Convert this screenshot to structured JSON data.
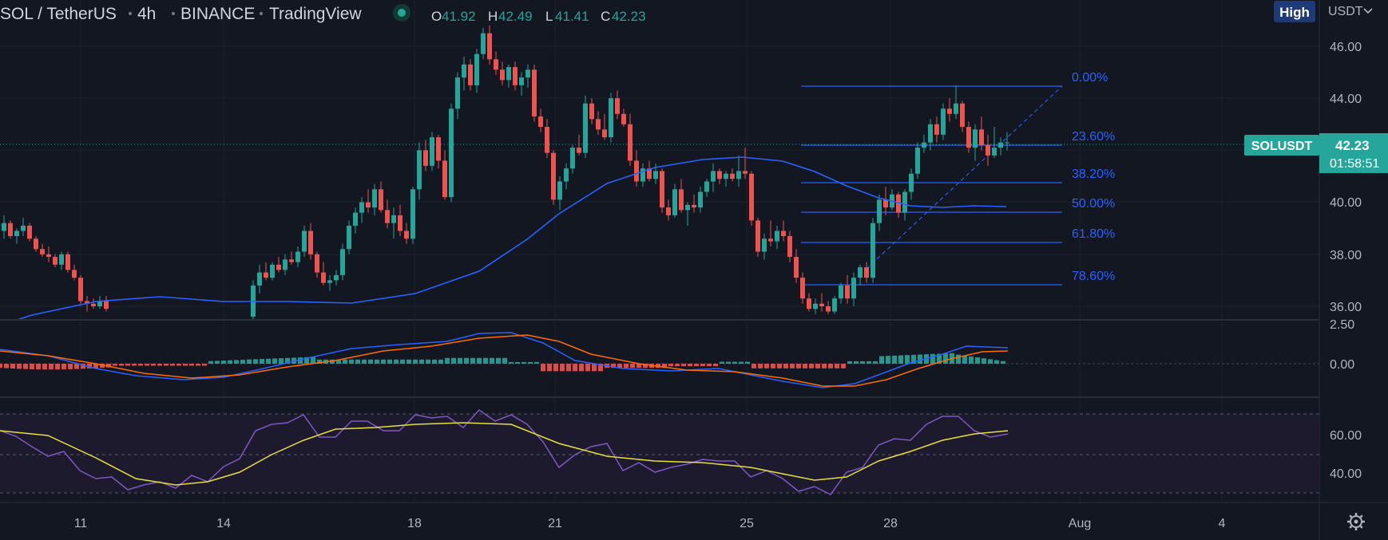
{
  "header": {
    "symbol": "SOL / TetherUS",
    "interval": "4h",
    "exchange": "BINANCE",
    "source": "TradingView",
    "o_label": "O",
    "o_value": "41.92",
    "h_label": "H",
    "h_value": "42.49",
    "l_label": "L",
    "l_value": "41.41",
    "c_label": "C",
    "c_value": "42.23"
  },
  "top_right": {
    "price_mode": "High",
    "currency": "USDT"
  },
  "price_tag": {
    "symbol": "SOLUSDT",
    "price": "42.23",
    "countdown": "01:58:51"
  },
  "colors": {
    "background": "#131722",
    "up": "#26a69a",
    "down": "#ef5350",
    "sma": "#2962ff",
    "fib": "#2962ff",
    "macd": "#2962ff",
    "signal": "#ff6d00",
    "rsi": "#7e57c2",
    "rsi_ma": "#e7df3a",
    "price_tag": "#26a69a"
  },
  "settings_icon": "gear-icon",
  "chart_data": [
    {
      "type": "candlestick",
      "title": "",
      "y_axis_ticks": [
        "46.00",
        "44.00",
        "40.00",
        "38.00",
        "36.00"
      ],
      "ylim": [
        35.5,
        47.4
      ],
      "x_ticks": [
        "11",
        "14",
        "18",
        "21",
        "25",
        "28",
        "Aug",
        "4"
      ],
      "ohlc_approx": [
        {
          "date": "Jul 19",
          "o": 41.3,
          "h": 46.0,
          "l": 41.0,
          "c": 45.8
        },
        {
          "date": "Jul 20",
          "o": 45.8,
          "h": 46.3,
          "l": 44.3,
          "c": 44.9
        },
        {
          "date": "Jul 21",
          "o": 44.9,
          "h": 44.9,
          "l": 39.8,
          "c": 40.3
        },
        {
          "date": "Jul 22",
          "o": 40.3,
          "h": 44.1,
          "l": 40.0,
          "c": 43.3
        },
        {
          "date": "Jul 23",
          "o": 43.3,
          "h": 44.3,
          "l": 40.0,
          "c": 41.0
        },
        {
          "date": "Jul 24",
          "o": 41.0,
          "h": 41.9,
          "l": 39.5,
          "c": 39.7
        },
        {
          "date": "Jul 25",
          "o": 39.7,
          "h": 42.0,
          "l": 37.8,
          "c": 38.3
        },
        {
          "date": "Jul 26",
          "o": 38.3,
          "h": 38.8,
          "l": 35.8,
          "c": 36.3
        },
        {
          "date": "Jul 27",
          "o": 36.3,
          "h": 38.3,
          "l": 35.8,
          "c": 37.7
        },
        {
          "date": "Jul 28",
          "o": 37.7,
          "h": 42.9,
          "l": 37.3,
          "c": 41.8
        },
        {
          "date": "Jul 29",
          "o": 41.8,
          "h": 44.5,
          "l": 41.1,
          "c": 42.2
        }
      ],
      "sma": {
        "name": "",
        "values_approx": [
          36.1,
          36.5,
          36.7,
          36.4,
          36.3,
          36.5,
          37.4,
          39.4,
          40.6,
          41.7,
          41.3,
          40.0,
          39.9
        ]
      },
      "fib_retracement": {
        "levels": [
          "0.00%",
          "23.60%",
          "38.20%",
          "50.00%",
          "61.80%",
          "78.60%"
        ],
        "prices_approx": [
          44.47,
          42.24,
          40.85,
          39.75,
          38.64,
          37.05
        ],
        "range": [
          35.8,
          44.47
        ]
      }
    },
    {
      "type": "line",
      "title": "",
      "y_axis_ticks": [
        "2.50",
        "0.00"
      ],
      "series": [
        {
          "name": "",
          "values_approx": [
            0.4,
            0.2,
            -0.3,
            -0.6,
            -0.4,
            0.4,
            0.9,
            1.3,
            1.7,
            1.5,
            0.6,
            -0.2,
            -0.3,
            -0.4,
            -0.8,
            -1.0,
            -0.3,
            0.6,
            0.8
          ]
        },
        {
          "name": "",
          "values_approx": [
            0.3,
            0.1,
            -0.2,
            -0.5,
            -0.3,
            0.3,
            0.6,
            0.9,
            1.3,
            1.5,
            1.1,
            0.3,
            -0.1,
            -0.2,
            -0.6,
            -1.0,
            -0.6,
            0.3,
            0.6
          ]
        }
      ],
      "histogram": "green bars above zero, red bars below zero"
    },
    {
      "type": "line",
      "title": "",
      "y_axis_ticks": [
        "60.00",
        "40.00"
      ],
      "bands": [
        70,
        50,
        30
      ],
      "series": [
        {
          "name": "",
          "values_approx": [
            58,
            52,
            42,
            36,
            33,
            34,
            45,
            64,
            66,
            70,
            64,
            58,
            68,
            65,
            52,
            45,
            48,
            42,
            32,
            36,
            55,
            65,
            68,
            58,
            60
          ]
        },
        {
          "name": "",
          "values_approx": [
            62,
            58,
            48,
            38,
            35,
            38,
            45,
            55,
            62,
            64,
            65,
            63,
            60,
            55,
            50,
            47,
            45,
            43,
            40,
            38,
            42,
            52,
            58,
            60,
            61
          ]
        }
      ]
    }
  ]
}
